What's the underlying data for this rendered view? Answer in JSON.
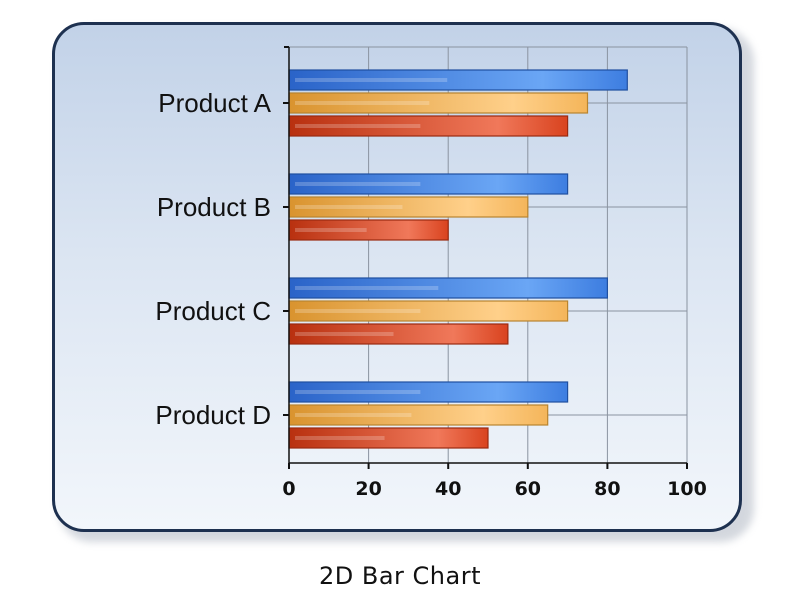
{
  "caption": "2D Bar Chart",
  "chart_data": {
    "type": "bar",
    "orientation": "horizontal",
    "categories": [
      "Product A",
      "Product B",
      "Product C",
      "Product D"
    ],
    "series": [
      {
        "values": [
          85,
          70,
          80,
          70
        ],
        "color": "#3d7de0"
      },
      {
        "values": [
          75,
          60,
          70,
          65
        ],
        "color": "#f4b55a"
      },
      {
        "values": [
          70,
          40,
          55,
          50
        ],
        "color": "#d9431f"
      }
    ],
    "xlim": [
      0,
      100
    ],
    "xticks": [
      0,
      20,
      40,
      60,
      80,
      100
    ],
    "grid": true,
    "title": "",
    "xlabel": "",
    "ylabel": ""
  }
}
